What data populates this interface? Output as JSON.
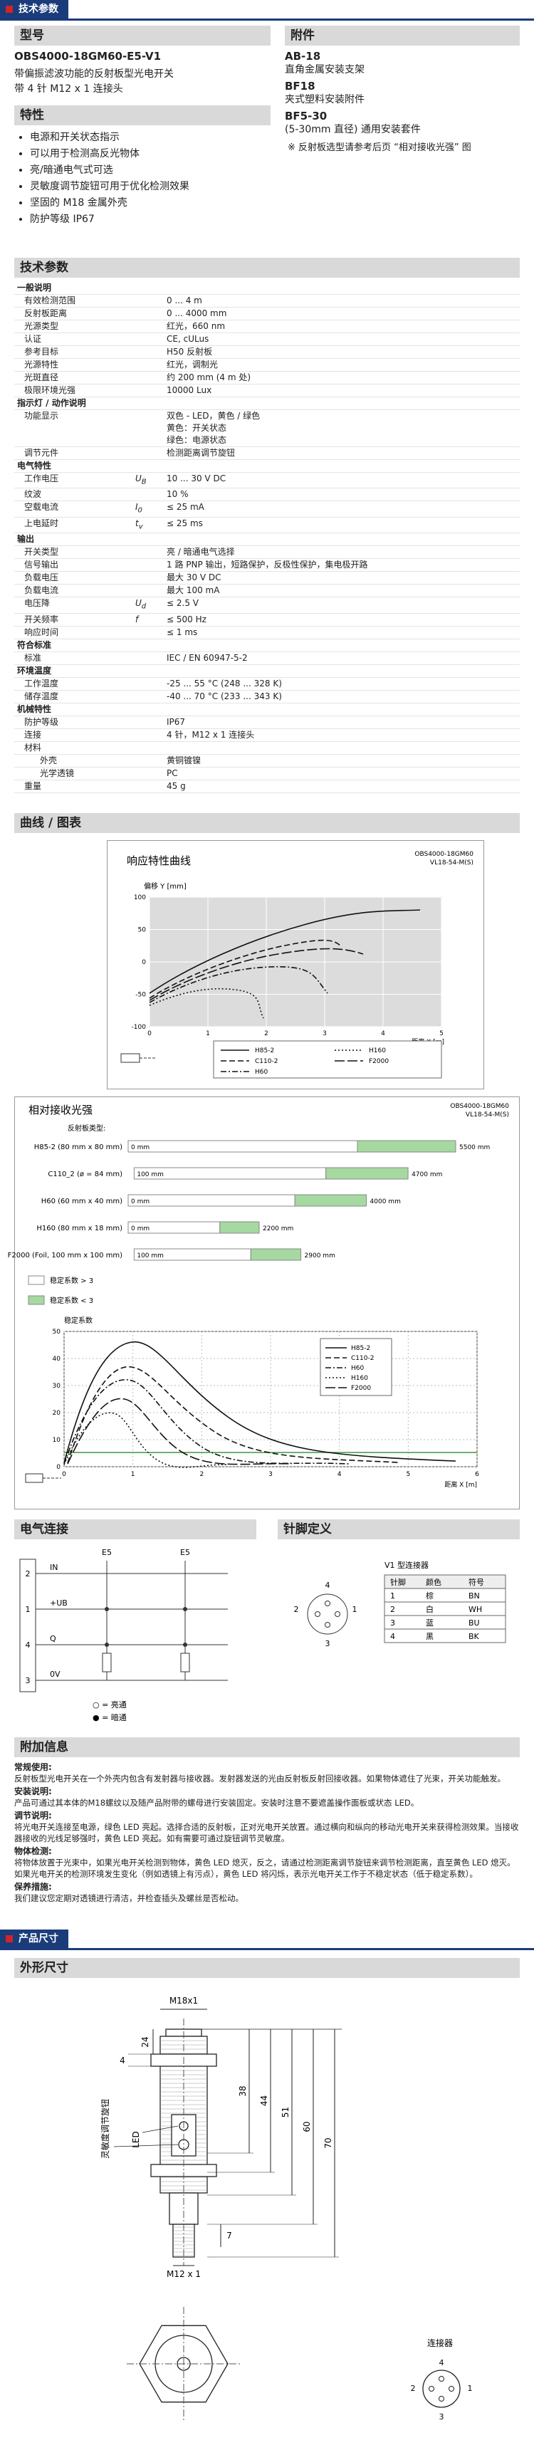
{
  "header": {
    "tab": "技术参数"
  },
  "model": {
    "heading": "型号",
    "name": "OBS4000-18GM60-E5-V1",
    "description": [
      "带偏振滤波功能的反射板型光电开关",
      "带 4 针 M12 x 1 连接头"
    ]
  },
  "features": {
    "heading": "特性",
    "items": [
      "电源和开关状态指示",
      "可以用于检测高反光物体",
      "亮/暗通电气式可选",
      "灵敏度调节旋钮可用于优化检测效果",
      "坚固的 M18 金属外壳",
      "防护等级 IP67"
    ]
  },
  "accessories": {
    "heading": "附件",
    "items": [
      {
        "name": "AB-18",
        "description": "直角金属安装支架"
      },
      {
        "name": "BF18",
        "description": "夹式塑料安装附件"
      },
      {
        "name": "BF5-30",
        "description": "(5-30mm 直径) 通用安装套件"
      }
    ],
    "note": "※ 反射板选型请参考后页 “相对接收光强” 图"
  },
  "specs": {
    "heading": "技术参数",
    "groups": [
      {
        "title": "一般说明",
        "rows": [
          {
            "label": "有效检测范围",
            "value": "0 ... 4 m"
          },
          {
            "label": "反射板距离",
            "value": "0 ... 4000 mm"
          },
          {
            "label": "光源类型",
            "value": "红光，660 nm"
          },
          {
            "label": "认证",
            "value": "CE, cULus"
          },
          {
            "label": "参考目标",
            "value": "H50 反射板"
          },
          {
            "label": "光源特性",
            "value": "红光，调制光"
          },
          {
            "label": "光斑直径",
            "value": "约 200 mm (4 m 处)"
          },
          {
            "label": "极限环境光强",
            "value": "10000 Lux"
          }
        ]
      },
      {
        "title": "指示灯 / 动作说明",
        "rows": [
          {
            "label": "功能显示",
            "value": [
              "双色 - LED，黄色 / 绿色",
              "黄色：开关状态",
              "绿色：电源状态"
            ]
          },
          {
            "label": "调节元件",
            "value": "检测距离调节旋钮"
          }
        ]
      },
      {
        "title": "电气特性",
        "rows": [
          {
            "label": "工作电压",
            "symbol": "U",
            "symbol_sub": "B",
            "value": "10 ... 30 V DC"
          },
          {
            "label": "纹波",
            "value": "10 %"
          },
          {
            "label": "空载电流",
            "symbol": "I",
            "symbol_sub": "0",
            "value": "≤ 25 mA"
          },
          {
            "label": "上电延时",
            "symbol": "t",
            "symbol_sub": "v",
            "value": "≤ 25 ms"
          }
        ]
      },
      {
        "title": "输出",
        "rows": [
          {
            "label": "开关类型",
            "value": "亮 / 暗通电气选择"
          },
          {
            "label": "信号输出",
            "value": "1 路 PNP 输出，短路保护，反极性保护，集电极开路"
          },
          {
            "label": "负载电压",
            "value": "最大 30 V DC"
          },
          {
            "label": "负载电流",
            "value": "最大 100 mA"
          },
          {
            "label": "电压降",
            "symbol": "U",
            "symbol_sub": "d",
            "value": "≤ 2.5 V"
          },
          {
            "label": "开关频率",
            "symbol": "f",
            "value": "≤ 500 Hz"
          },
          {
            "label": "响应时间",
            "value": "≤ 1 ms"
          }
        ]
      },
      {
        "title": "符合标准",
        "rows": [
          {
            "label": "标准",
            "value": "IEC / EN 60947-5-2"
          }
        ]
      },
      {
        "title": "环境温度",
        "rows": [
          {
            "label": "工作温度",
            "value": "-25 ... 55 °C (248 ... 328 K)"
          },
          {
            "label": "储存温度",
            "value": "-40 ... 70 °C (233 ... 343 K)"
          }
        ]
      },
      {
        "title": "机械特性",
        "rows": [
          {
            "label": "防护等级",
            "value": "IP67"
          },
          {
            "label": "连接",
            "value": "4 针，M12 x 1 连接头"
          },
          {
            "label": "材料",
            "rows": [
              {
                "label": "外壳",
                "value": "黄铜镀镍"
              },
              {
                "label": "光学透镜",
                "value": "PC"
              }
            ]
          },
          {
            "label": "重量",
            "value": "45 g"
          }
        ]
      }
    ]
  },
  "curves": {
    "heading": "曲线 / 图表",
    "response": {
      "title": "响应特性曲线",
      "model": [
        "OBS4000-18GM60",
        "VL18-54-M(S)"
      ],
      "y_label": "偏移 Y [mm]",
      "x_label": "距离 X [m]",
      "yticks": [
        "100",
        "50",
        "0",
        "-50",
        "-100"
      ],
      "xticks": [
        "0",
        "1",
        "2",
        "3",
        "4",
        "5"
      ],
      "legend": [
        "H85-2",
        "C110-2",
        "H60",
        "H160",
        "F2000"
      ]
    },
    "intensity": {
      "title": "相对接收光强",
      "model": [
        "OBS4000-18GM60",
        "VL18-54-M(S)"
      ],
      "reflector_label": "反射板类型:",
      "bars": [
        {
          "name": "H85-2 (80 mm x 80 mm)",
          "start": {
            "value": 0,
            "label": "0 mm"
          },
          "end": {
            "value": 5500,
            "label": "5500 mm"
          }
        },
        {
          "name": "C110_2 (ø = 84 mm)",
          "start": {
            "value": 100,
            "label": "100 mm"
          },
          "end": {
            "value": 4700,
            "label": "4700 mm"
          }
        },
        {
          "name": "H60 (60 mm x 40 mm)",
          "start": {
            "value": 0,
            "label": "0 mm"
          },
          "end": {
            "value": 4000,
            "label": "4000 mm"
          }
        },
        {
          "name": "H160 (80 mm x 18 mm)",
          "start": {
            "value": 0,
            "label": "0 mm"
          },
          "end": {
            "value": 2200,
            "label": "2200 mm"
          }
        },
        {
          "name": "F2000 (Foil, 100 mm x 100 mm)",
          "start": {
            "value": 100,
            "label": "100 mm"
          },
          "end": {
            "value": 2900,
            "label": "2900 mm"
          }
        }
      ],
      "range_legend": [
        "稳定系数 > 3",
        "稳定系数 < 3"
      ],
      "y_label": "稳定系数",
      "x_label": "距离 X [m]",
      "yticks": [
        "50",
        "40",
        "30",
        "20",
        "10",
        "0"
      ],
      "xticks": [
        "0",
        "1",
        "2",
        "3",
        "4",
        "5",
        "6"
      ],
      "legend": [
        "H85-2",
        "C110-2",
        "H60",
        "H160",
        "F2000"
      ]
    }
  },
  "electrical": {
    "heading": "电气连接",
    "columns": [
      "E5",
      "E5"
    ],
    "pins": [
      {
        "number": "2",
        "label": "IN"
      },
      {
        "number": "1",
        "label": "+UB"
      },
      {
        "number": "4",
        "label": "Q"
      },
      {
        "number": "3",
        "label": "0V"
      }
    ],
    "legend": [
      "○ = 亮通",
      "● = 暗通"
    ]
  },
  "pinout": {
    "heading": "针脚定义",
    "connector": "V1 型连接器",
    "pin_numbers": [
      "1",
      "2",
      "3",
      "4"
    ],
    "table": {
      "header": [
        "针脚",
        "颜色",
        "符号"
      ],
      "rows": [
        [
          "1",
          "棕",
          "BN"
        ],
        [
          "2",
          "白",
          "WH"
        ],
        [
          "3",
          "蓝",
          "BU"
        ],
        [
          "4",
          "黑",
          "BK"
        ]
      ]
    }
  },
  "extra": {
    "heading": "附加信息",
    "paragraphs": [
      {
        "title": "常规使用:",
        "text": "反射板型光电开关在一个外壳内包含有发射器与接收器。发射器发送的光由反射板反射回接收器。如果物体遮住了光束，开关功能触发。"
      },
      {
        "title": "安装说明:",
        "text": "产品可通过其本体的M18螺纹以及随产品附带的螺母进行安装固定。安装时注意不要遮盖操作面板或状态 LED。"
      },
      {
        "title": "调节说明:",
        "text": "将光电开关连接至电源，绿色 LED 亮起。选择合适的反射板，正对光电开关放置。通过横向和纵向的移动光电开关来获得检测效果。当接收器接收的光线足够强时，黄色 LED 亮起。如有需要可通过旋钮调节灵敏度。"
      },
      {
        "title": "物体检测:",
        "text": "将物体放置于光束中，如果光电开关检测到物体，黄色 LED 熄灭，反之，请通过检测距离调节旋钮来调节检测距离，直至黄色 LED 熄灭。如果光电开关的检测环境发生变化（例如透镜上有污点），黄色 LED 将闪烁，表示光电开关工作于不稳定状态（低于稳定系数）。"
      },
      {
        "title": "保养措施:",
        "text": "我们建议您定期对透镜进行清洁，并检查插头及螺丝是否松动。"
      }
    ]
  },
  "dimensions": {
    "bar": "产品尺寸",
    "heading": "外形尺寸",
    "thread": "M18x1",
    "connector_thread": "M12 x 1",
    "led": "LED",
    "knob": "灵敏度调节旋钮",
    "measures": [
      "24",
      "4",
      "38",
      "44",
      "51",
      "60",
      "70",
      "7"
    ],
    "connector_label": "连接器",
    "connector_pins": [
      "1",
      "2",
      "3",
      "4"
    ]
  }
}
